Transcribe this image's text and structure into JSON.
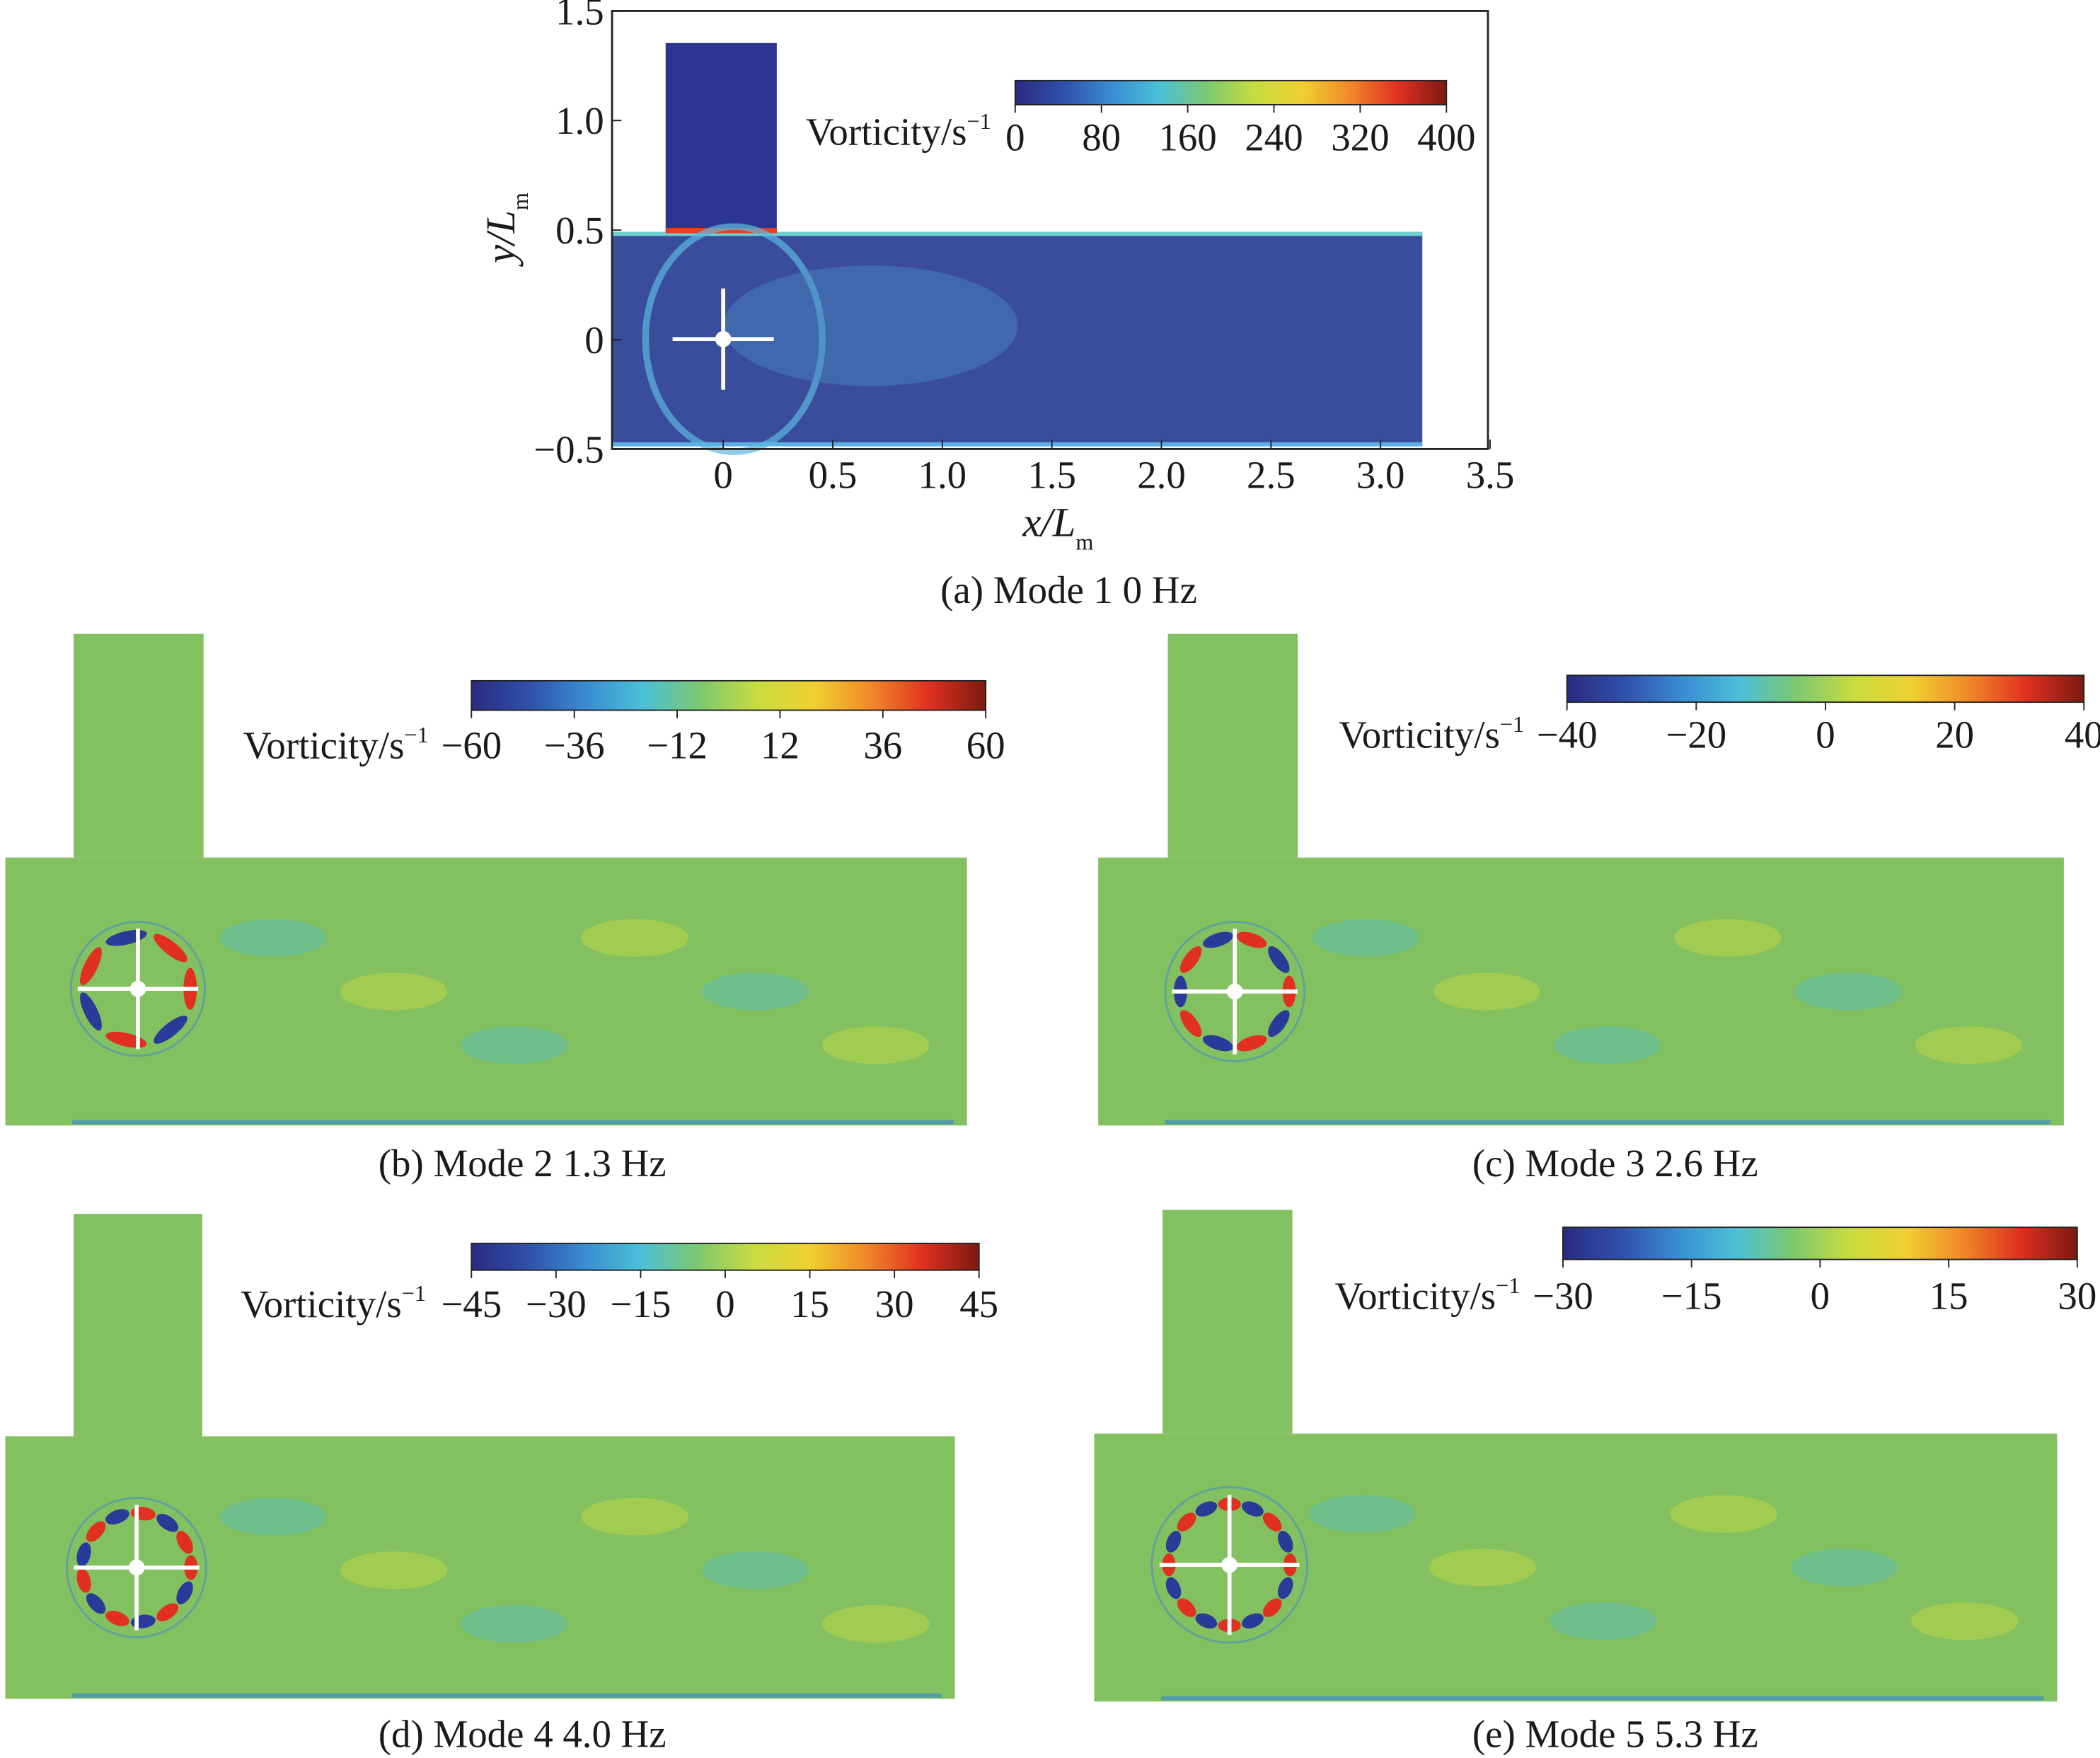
{
  "colormap": [
    "#2a2a80",
    "#3050a8",
    "#3a8cd0",
    "#4ac0d8",
    "#7cc870",
    "#c8dc40",
    "#f0d030",
    "#f08828",
    "#e03020",
    "#7a1a10"
  ],
  "field_colors": {
    "mode1_background": "#3a4c9c",
    "mode1_inlet": "#2c3690",
    "modes_background": "#82c060"
  },
  "panels": [
    {
      "id": "a",
      "caption": "(a)  Mode 1     0 Hz",
      "colorbar_label": "Vorticity/s",
      "colorbar_unit_exp": "−1",
      "colorbar_ticks": [
        "0",
        "80",
        "160",
        "240",
        "320",
        "400"
      ],
      "x_axis": {
        "label": "x/L",
        "label_sub": "m",
        "ticks": [
          "0",
          "0.5",
          "1.0",
          "1.5",
          "2.0",
          "2.5",
          "3.0",
          "3.5"
        ]
      },
      "y_axis": {
        "label": "y/L",
        "label_sub": "m",
        "ticks": [
          "1.5",
          "1.0",
          "0.5",
          "0",
          "−0.5"
        ]
      }
    },
    {
      "id": "b",
      "caption": "(b) Mode 2     1.3 Hz",
      "colorbar_label": "Vorticity/s",
      "colorbar_unit_exp": "−1",
      "colorbar_ticks": [
        "−60",
        "−36",
        "−12",
        "12",
        "36",
        "60"
      ]
    },
    {
      "id": "c",
      "caption": "(c)   Mode 3     2.6 Hz",
      "colorbar_label": "Vorticity/s",
      "colorbar_unit_exp": "−1",
      "colorbar_ticks": [
        "−40",
        "−20",
        "0",
        "20",
        "40"
      ]
    },
    {
      "id": "d",
      "caption": "(d) Mode 4     4.0 Hz",
      "colorbar_label": "Vorticity/s",
      "colorbar_unit_exp": "−1",
      "colorbar_ticks": [
        "−45",
        "−30",
        "−15",
        "0",
        "15",
        "30",
        "45"
      ]
    },
    {
      "id": "e",
      "caption": "(e)   Mode 5     5.3 Hz",
      "colorbar_label": "Vorticity/s",
      "colorbar_unit_exp": "−1",
      "colorbar_ticks": [
        "−30",
        "−15",
        "0",
        "15",
        "30"
      ]
    }
  ]
}
